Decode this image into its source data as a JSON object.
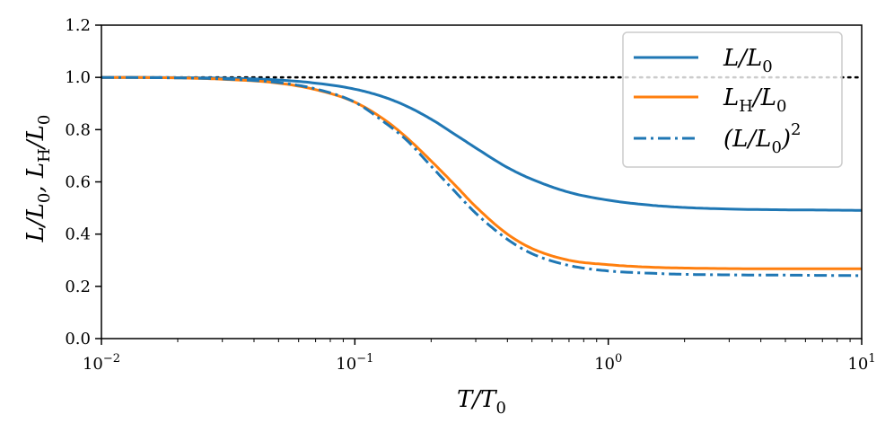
{
  "chart_data": {
    "type": "line",
    "x_scale": "log",
    "xlim": [
      0.01,
      10
    ],
    "ylim": [
      0.0,
      1.2
    ],
    "xlabel": {
      "base": "T/T",
      "sub": "0"
    },
    "ylabel": {
      "p1": "L/L",
      "s1": "0",
      "p2": ", L",
      "s2": "H",
      "p3": "/L",
      "s3": "0"
    },
    "x_ticks": [
      {
        "base": "10",
        "exp": "−2"
      },
      {
        "base": "10",
        "exp": "−1"
      },
      {
        "base": "10",
        "exp": "0"
      },
      {
        "base": "10",
        "exp": "1"
      }
    ],
    "y_ticks": [
      "0.0",
      "0.2",
      "0.4",
      "0.6",
      "0.8",
      "1.0",
      "1.2"
    ],
    "y_tick_values": [
      0.0,
      0.2,
      0.4,
      0.6,
      0.8,
      1.0,
      1.2
    ],
    "reference_line": {
      "y": 1.0,
      "style": "dotted",
      "color": "#000000"
    },
    "x": [
      0.01,
      0.02,
      0.03,
      0.05,
      0.07,
      0.1,
      0.13,
      0.16,
      0.2,
      0.25,
      0.3,
      0.4,
      0.5,
      0.7,
      1.0,
      1.5,
      2.0,
      3.0,
      5.0,
      7.0,
      10.0
    ],
    "series": [
      {
        "name": "L/L0",
        "color": "#1f77b4",
        "style": "solid",
        "values": [
          1.0,
          0.999,
          0.997,
          0.99,
          0.978,
          0.955,
          0.925,
          0.89,
          0.84,
          0.78,
          0.73,
          0.655,
          0.61,
          0.56,
          0.53,
          0.51,
          0.502,
          0.496,
          0.493,
          0.492,
          0.491
        ]
      },
      {
        "name": "LH/L0",
        "color": "#ff7f0e",
        "style": "solid",
        "values": [
          1.0,
          0.998,
          0.993,
          0.978,
          0.953,
          0.905,
          0.84,
          0.77,
          0.68,
          0.585,
          0.505,
          0.4,
          0.345,
          0.3,
          0.283,
          0.273,
          0.27,
          0.268,
          0.267,
          0.267,
          0.267
        ]
      },
      {
        "name": "(L/L0)^2",
        "color": "#1f77b4",
        "style": "dashdot",
        "values": [
          1.0,
          0.998,
          0.994,
          0.98,
          0.956,
          0.905,
          0.83,
          0.76,
          0.66,
          0.56,
          0.48,
          0.38,
          0.325,
          0.28,
          0.259,
          0.25,
          0.246,
          0.244,
          0.243,
          0.242,
          0.241
        ]
      }
    ],
    "legend": {
      "placement": "top-right",
      "entries": [
        {
          "label_main": "L/L",
          "label_sub": "0",
          "label_sup": ""
        },
        {
          "label_main": "L",
          "label_sub": "H",
          "label_mid": "/L",
          "label_sub2": "0"
        },
        {
          "label_main": "(L/L",
          "label_sub": "0",
          "label_close": ")",
          "label_sup": "2"
        }
      ]
    }
  }
}
